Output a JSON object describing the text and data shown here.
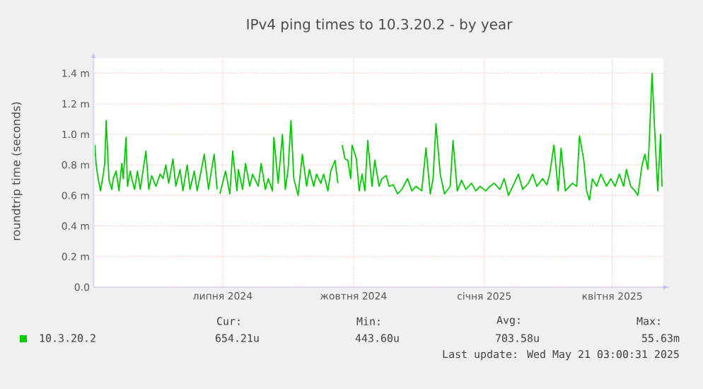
{
  "chart_data": {
    "type": "line",
    "title": "IPv4 ping times to 10.3.20.2 - by year",
    "ylabel": "roundtrip time (seconds)",
    "xlim": [
      "2024-04-16",
      "2025-05-21"
    ],
    "xticks": [
      {
        "value": "2024-07-15",
        "label": "липня 2024"
      },
      {
        "value": "2024-10-15",
        "label": "жовтня 2024"
      },
      {
        "value": "2025-01-15",
        "label": "січня 2025"
      },
      {
        "value": "2025-04-15",
        "label": "квітня 2025"
      }
    ],
    "ylim": [
      0,
      1.5
    ],
    "yticks": [
      {
        "value": 0,
        "label": "0.0"
      },
      {
        "value": 0.2,
        "label": "0.2 m"
      },
      {
        "value": 0.4,
        "label": "0.4 m"
      },
      {
        "value": 0.6,
        "label": "0.6 m"
      },
      {
        "value": 0.8,
        "label": "0.8 m"
      },
      {
        "value": 1.0,
        "label": "1.0 m"
      },
      {
        "value": 1.2,
        "label": "1.2 m"
      },
      {
        "value": 1.4,
        "label": "1.4 m"
      }
    ],
    "grid": true,
    "legend": "bottom",
    "marker": "none",
    "line_style": "solid",
    "x": [
      "2024-04-16",
      "2024-04-17",
      "2024-04-18",
      "2024-04-20",
      "2024-04-22",
      "2024-04-23",
      "2024-04-24",
      "2024-04-26",
      "2024-04-28",
      "2024-04-29",
      "2024-05-01",
      "2024-05-03",
      "2024-05-05",
      "2024-05-06",
      "2024-05-08",
      "2024-05-09",
      "2024-05-11",
      "2024-05-12",
      "2024-05-14",
      "2024-05-16",
      "2024-05-18",
      "2024-05-21",
      "2024-05-22",
      "2024-05-24",
      "2024-05-26",
      "2024-05-29",
      "2024-06-01",
      "2024-06-03",
      "2024-06-05",
      "2024-06-07",
      "2024-06-10",
      "2024-06-12",
      "2024-06-15",
      "2024-06-17",
      "2024-06-20",
      "2024-06-22",
      "2024-06-25",
      "2024-06-27",
      "2024-06-30",
      "2024-07-02",
      "2024-07-05",
      "2024-07-07",
      "2024-07-09",
      "2024-07-11",
      "2024-07-12",
      "2024-07-13",
      "2024-07-17",
      "2024-07-20",
      "2024-07-22",
      "2024-07-25",
      "2024-07-26",
      "2024-07-29",
      "2024-07-31",
      "2024-08-03",
      "2024-08-05",
      "2024-08-09",
      "2024-08-11",
      "2024-08-14",
      "2024-08-16",
      "2024-08-19",
      "2024-08-20",
      "2024-08-23",
      "2024-08-26",
      "2024-08-28",
      "2024-08-30",
      "2024-09-01",
      "2024-09-03",
      "2024-09-06",
      "2024-09-09",
      "2024-09-12",
      "2024-09-14",
      "2024-09-17",
      "2024-09-19",
      "2024-09-22",
      "2024-09-24",
      "2024-09-27",
      "2024-09-29",
      "2024-10-02",
      "2024-10-04",
      "2024-10-05",
      "2024-10-07",
      "2024-10-09",
      "2024-10-11",
      "2024-10-13",
      "2024-10-14",
      "2024-10-17",
      "2024-10-19",
      "2024-10-21",
      "2024-10-23",
      "2024-10-25",
      "2024-10-28",
      "2024-10-30",
      "2024-11-02",
      "2024-11-04",
      "2024-11-07",
      "2024-11-09",
      "2024-11-12",
      "2024-11-15",
      "2024-11-18",
      "2024-11-22",
      "2024-11-25",
      "2024-11-28",
      "2024-12-02",
      "2024-12-05",
      "2024-12-08",
      "2024-12-10",
      "2024-12-12",
      "2024-12-15",
      "2024-12-18",
      "2024-12-22",
      "2024-12-24",
      "2024-12-27",
      "2024-12-30",
      "2025-01-02",
      "2025-01-06",
      "2025-01-09",
      "2025-01-12",
      "2025-01-16",
      "2025-01-19",
      "2025-01-22",
      "2025-01-26",
      "2025-01-29",
      "2025-02-01",
      "2025-02-05",
      "2025-02-08",
      "2025-02-11",
      "2025-02-15",
      "2025-02-18",
      "2025-02-21",
      "2025-02-25",
      "2025-02-28",
      "2025-03-02",
      "2025-03-05",
      "2025-03-08",
      "2025-03-10",
      "2025-03-13",
      "2025-03-16",
      "2025-03-18",
      "2025-03-21",
      "2025-03-23",
      "2025-03-26",
      "2025-03-28",
      "2025-03-30",
      "2025-04-01",
      "2025-04-04",
      "2025-04-07",
      "2025-04-11",
      "2025-04-14",
      "2025-04-17",
      "2025-04-20",
      "2025-04-23",
      "2025-04-25",
      "2025-04-28",
      "2025-05-01",
      "2025-05-03",
      "2025-05-06",
      "2025-05-08",
      "2025-05-10",
      "2025-05-11",
      "2025-05-13",
      "2025-05-15",
      "2025-05-17",
      "2025-05-19",
      "2025-05-20"
    ],
    "series": [
      {
        "name": "10.3.20.2",
        "color": "#00cc00",
        "values": [
          0.93,
          0.8,
          0.73,
          0.63,
          0.74,
          0.81,
          1.09,
          0.7,
          0.64,
          0.71,
          0.76,
          0.63,
          0.81,
          0.71,
          0.98,
          0.66,
          0.76,
          0.71,
          0.64,
          0.76,
          0.64,
          0.83,
          0.89,
          0.64,
          0.73,
          0.66,
          0.74,
          0.71,
          0.8,
          0.68,
          0.84,
          0.66,
          0.77,
          0.63,
          0.8,
          0.64,
          0.76,
          0.63,
          0.77,
          0.87,
          0.64,
          0.76,
          0.87,
          0.64,
          null,
          0.61,
          0.76,
          0.61,
          0.89,
          0.63,
          0.77,
          0.64,
          0.81,
          0.66,
          0.74,
          0.66,
          0.81,
          0.64,
          0.71,
          0.63,
          0.98,
          0.68,
          1.0,
          0.64,
          0.77,
          1.09,
          0.71,
          0.6,
          0.87,
          0.66,
          0.77,
          0.66,
          0.74,
          0.68,
          0.74,
          0.63,
          0.76,
          0.83,
          0.68,
          null,
          0.93,
          0.84,
          0.83,
          0.71,
          0.93,
          0.84,
          0.63,
          0.74,
          0.63,
          0.96,
          0.66,
          0.83,
          0.66,
          0.71,
          0.73,
          0.66,
          0.67,
          0.61,
          0.64,
          0.71,
          0.63,
          0.66,
          0.63,
          0.91,
          0.61,
          0.71,
          1.07,
          0.74,
          0.61,
          0.66,
          0.96,
          0.63,
          0.7,
          0.64,
          0.68,
          0.63,
          0.66,
          0.63,
          0.66,
          0.68,
          0.64,
          0.71,
          0.6,
          0.68,
          0.74,
          0.64,
          0.68,
          0.74,
          0.66,
          0.71,
          0.67,
          0.74,
          0.93,
          0.63,
          0.91,
          0.63,
          0.66,
          0.68,
          0.66,
          0.99,
          0.83,
          0.63,
          0.57,
          0.71,
          0.66,
          0.74,
          0.66,
          0.71,
          0.66,
          0.74,
          0.66,
          0.77,
          0.66,
          0.63,
          0.6,
          0.8,
          0.87,
          0.77,
          0.94,
          1.4,
          1.0,
          0.63,
          1.0,
          0.66
        ]
      }
    ],
    "annotations": [
      "Cur:",
      "Min:",
      "Avg:",
      "Max:",
      "654.21u",
      "443.60u",
      "703.58u",
      "55.63m",
      "Last update: Wed May 21 03:00:31 2025"
    ]
  }
}
